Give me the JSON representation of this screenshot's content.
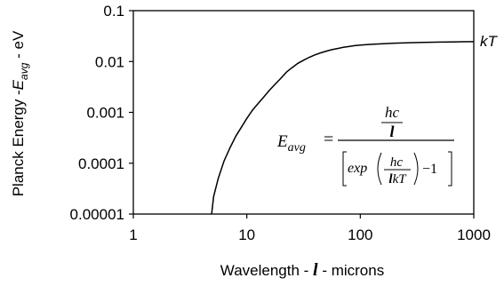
{
  "chart_data": {
    "type": "line",
    "x_scale": "log",
    "y_scale": "log",
    "xlim": [
      1,
      1000
    ],
    "ylim": [
      1e-05,
      0.1
    ],
    "x_ticks": [
      1,
      10,
      100,
      1000
    ],
    "x_tick_labels": [
      "1",
      "10",
      "100",
      "1000"
    ],
    "y_ticks": [
      1e-05,
      0.0001,
      0.001,
      0.01,
      0.1
    ],
    "y_tick_labels": [
      "0.00001",
      "0.0001",
      "0.001",
      "0.01",
      "0.1"
    ],
    "xlabel": {
      "prefix": "Wavelength - ",
      "symbol": "l",
      "suffix": " - microns"
    },
    "ylabel": {
      "prefix": "Planck Energy -",
      "symbol": "E",
      "subscript": "avg",
      "suffix": " - eV"
    },
    "grid": false,
    "series": [
      {
        "x": [
          4.9,
          5.1,
          5.6,
          6.3,
          7.1,
          8.0,
          9.0,
          10.0,
          11.2,
          12.6,
          14.1,
          15.8,
          17.8,
          20.0,
          22.4,
          25.1,
          28.2,
          31.6,
          35.5,
          39.8,
          44.7,
          50.1,
          56.2,
          63.1,
          70.8,
          79.4,
          89.1,
          100,
          125.9,
          158.5,
          199.5,
          251.2,
          316.2,
          398.1,
          501.2,
          631.0,
          794.3,
          1000
        ],
        "y": [
          1e-05,
          2.2e-05,
          5e-05,
          0.00011,
          0.0002,
          0.00034,
          0.00052,
          0.00076,
          0.0011,
          0.0015,
          0.002,
          0.0027,
          0.0036,
          0.0047,
          0.0062,
          0.0076,
          0.0092,
          0.0106,
          0.0121,
          0.0135,
          0.0148,
          0.016,
          0.0171,
          0.018,
          0.019,
          0.0197,
          0.0205,
          0.021,
          0.0218,
          0.0224,
          0.0229,
          0.0233,
          0.0236,
          0.0239,
          0.0241,
          0.0243,
          0.0245,
          0.0246
        ]
      }
    ],
    "annotations": {
      "line_label": "kT",
      "equation": {
        "lhs": "E",
        "lhs_sub": "avg",
        "equals": "=",
        "num_top": "hc",
        "num_bottom": "l",
        "den_exp": "exp",
        "den_frac_top": "hc",
        "den_frac_bottom_sym": "l",
        "den_frac_bottom": "kT",
        "den_minus_one": "−1"
      }
    }
  }
}
